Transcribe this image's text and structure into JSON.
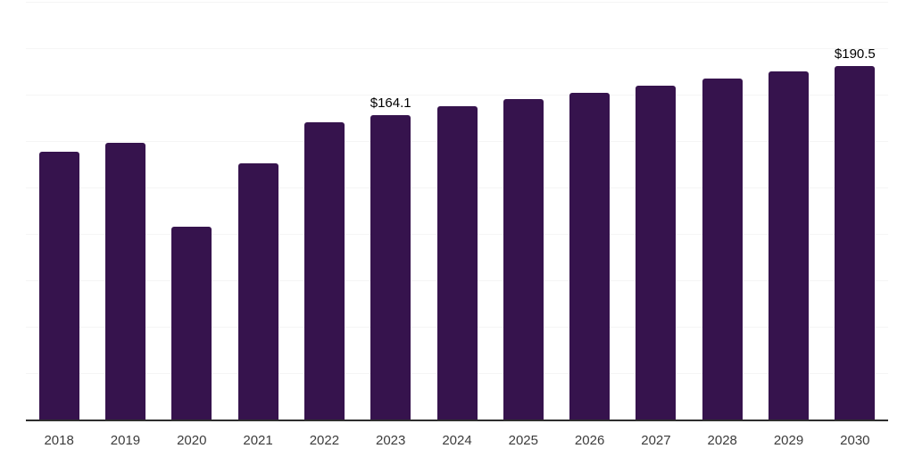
{
  "chart_data": {
    "type": "bar",
    "title": "",
    "xlabel": "",
    "ylabel": "",
    "categories": [
      "2018",
      "2019",
      "2020",
      "2021",
      "2022",
      "2023",
      "2024",
      "2025",
      "2026",
      "2027",
      "2028",
      "2029",
      "2030"
    ],
    "values": [
      144.1,
      148.9,
      103.8,
      137.8,
      160.3,
      164.1,
      168.6,
      172.7,
      176.0,
      179.7,
      183.7,
      187.6,
      190.5
    ],
    "data_labels": [
      "",
      "",
      "",
      "",
      "",
      "$164.1",
      "",
      "",
      "",
      "",
      "",
      "",
      "$190.5"
    ],
    "ylim": [
      0,
      225
    ],
    "gridline_step": 25,
    "grid": true,
    "legend": false,
    "colors": {
      "bar": "#36134D",
      "gridline": "#F5F5F5",
      "axis_line": "#2E2E2E",
      "tick_label": "#3C3C3C",
      "data_label": "#000000",
      "background": "#FFFFFF"
    }
  }
}
